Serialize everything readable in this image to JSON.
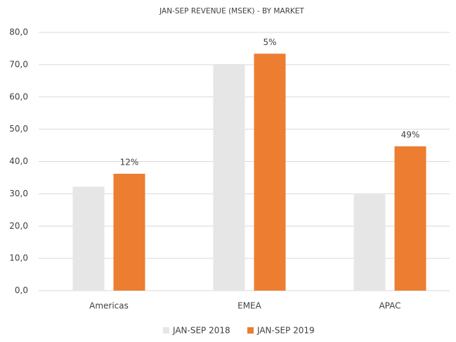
{
  "chart_data": {
    "type": "bar",
    "title": "JAN-SEP REVENUE (MSEK) - BY MARKET",
    "categories": [
      "Americas",
      "EMEA",
      "APAC"
    ],
    "series": [
      {
        "name": "JAN-SEP 2018",
        "color": "#e7e6e6",
        "values": [
          32.2,
          69.9,
          29.8
        ]
      },
      {
        "name": "JAN-SEP 2019",
        "color": "#ed7d31",
        "values": [
          36.2,
          73.4,
          44.7
        ]
      }
    ],
    "annotations": [
      "12%",
      "5%",
      "49%"
    ],
    "ylim": [
      0,
      80
    ],
    "yticks": [
      {
        "value": 0,
        "label": "0,0"
      },
      {
        "value": 10,
        "label": "10,0"
      },
      {
        "value": 20,
        "label": "20,0"
      },
      {
        "value": 30,
        "label": "30,0"
      },
      {
        "value": 40,
        "label": "40,0"
      },
      {
        "value": 50,
        "label": "50,0"
      },
      {
        "value": 60,
        "label": "60,0"
      },
      {
        "value": 70,
        "label": "70,0"
      },
      {
        "value": 80,
        "label": "80,0"
      }
    ],
    "grid": true
  }
}
